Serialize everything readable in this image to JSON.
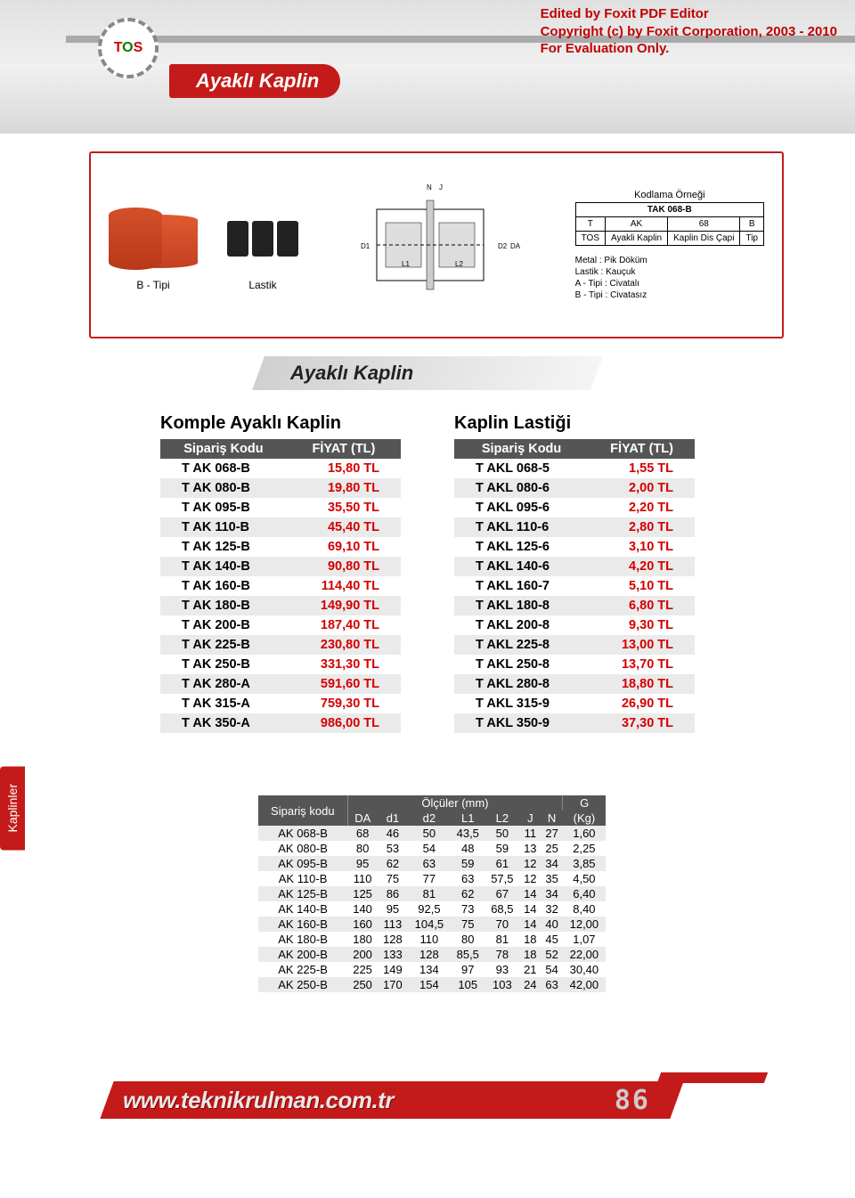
{
  "watermark": {
    "line1": "Edited by Foxit PDF Editor",
    "line2": "Copyright (c) by Foxit Corporation, 2003 - 2010",
    "line3": "For Evaluation Only."
  },
  "logo": {
    "t": "T",
    "o": "O",
    "s": "S"
  },
  "header_title": "Ayaklı Kaplin",
  "product_labels": {
    "btipi": "B - Tipi",
    "lastik": "Lastik"
  },
  "coding": {
    "title": "Kodlama Örneği",
    "example": "TAK 068-B",
    "row1": [
      "T",
      "AK",
      "68",
      "B"
    ],
    "row2": [
      "TOS",
      "Ayakli Kaplin",
      "Kaplin Dis Çapi",
      "Tip"
    ],
    "notes": [
      "Metal : Pik Döküm",
      "Lastik : Kauçuk",
      "A - Tipi : Civatalı",
      "B - Tipi : Civatasız"
    ]
  },
  "section_heading": "Ayaklı Kaplin",
  "table_left": {
    "title": "Komple Ayaklı Kaplin",
    "headers": [
      "Sipariş Kodu",
      "FİYAT  (TL)"
    ],
    "rows": [
      [
        "T AK 068-B",
        "15,80 TL"
      ],
      [
        "T AK 080-B",
        "19,80 TL"
      ],
      [
        "T AK 095-B",
        "35,50 TL"
      ],
      [
        "T AK 110-B",
        "45,40 TL"
      ],
      [
        "T AK 125-B",
        "69,10 TL"
      ],
      [
        "T AK 140-B",
        "90,80 TL"
      ],
      [
        "T AK 160-B",
        "114,40 TL"
      ],
      [
        "T AK 180-B",
        "149,90 TL"
      ],
      [
        "T AK 200-B",
        "187,40 TL"
      ],
      [
        "T AK 225-B",
        "230,80 TL"
      ],
      [
        "T AK 250-B",
        "331,30 TL"
      ],
      [
        "T AK 280-A",
        "591,60 TL"
      ],
      [
        "T AK 315-A",
        "759,30 TL"
      ],
      [
        "T AK 350-A",
        "986,00 TL"
      ]
    ]
  },
  "table_right": {
    "title": "Kaplin Lastiği",
    "headers": [
      "Sipariş Kodu",
      "FİYAT  (TL)"
    ],
    "rows": [
      [
        "T AKL 068-5",
        "1,55 TL"
      ],
      [
        "T AKL 080-6",
        "2,00 TL"
      ],
      [
        "T AKL 095-6",
        "2,20 TL"
      ],
      [
        "T AKL 110-6",
        "2,80 TL"
      ],
      [
        "T AKL 125-6",
        "3,10 TL"
      ],
      [
        "T AKL 140-6",
        "4,20 TL"
      ],
      [
        "T AKL 160-7",
        "5,10 TL"
      ],
      [
        "T AKL 180-8",
        "6,80 TL"
      ],
      [
        "T AKL 200-8",
        "9,30 TL"
      ],
      [
        "T AKL 225-8",
        "13,00 TL"
      ],
      [
        "T AKL 250-8",
        "13,70 TL"
      ],
      [
        "T AKL 280-8",
        "18,80 TL"
      ],
      [
        "T AKL 315-9",
        "26,90 TL"
      ],
      [
        "T AKL 350-9",
        "37,30 TL"
      ]
    ]
  },
  "side_tab": "Kaplinler",
  "dims": {
    "header_group1": "Sipariş kodu",
    "header_group2": "Ölçüler (mm)",
    "header_group3": "G",
    "subheads": [
      "DA",
      "d1",
      "d2",
      "L1",
      "L2",
      "J",
      "N",
      "(Kg)"
    ],
    "rows": [
      [
        "AK 068-B",
        "68",
        "46",
        "50",
        "43,5",
        "50",
        "11",
        "27",
        "1,60"
      ],
      [
        "AK 080-B",
        "80",
        "53",
        "54",
        "48",
        "59",
        "13",
        "25",
        "2,25"
      ],
      [
        "AK 095-B",
        "95",
        "62",
        "63",
        "59",
        "61",
        "12",
        "34",
        "3,85"
      ],
      [
        "AK 110-B",
        "110",
        "75",
        "77",
        "63",
        "57,5",
        "12",
        "35",
        "4,50"
      ],
      [
        "AK 125-B",
        "125",
        "86",
        "81",
        "62",
        "67",
        "14",
        "34",
        "6,40"
      ],
      [
        "AK 140-B",
        "140",
        "95",
        "92,5",
        "73",
        "68,5",
        "14",
        "32",
        "8,40"
      ],
      [
        "AK 160-B",
        "160",
        "113",
        "104,5",
        "75",
        "70",
        "14",
        "40",
        "12,00"
      ],
      [
        "AK 180-B",
        "180",
        "128",
        "110",
        "80",
        "81",
        "18",
        "45",
        "1,07"
      ],
      [
        "AK 200-B",
        "200",
        "133",
        "128",
        "85,5",
        "78",
        "18",
        "52",
        "22,00"
      ],
      [
        "AK 225-B",
        "225",
        "149",
        "134",
        "97",
        "93",
        "21",
        "54",
        "30,40"
      ],
      [
        "AK 250-B",
        "250",
        "170",
        "154",
        "105",
        "103",
        "24",
        "63",
        "42,00"
      ]
    ]
  },
  "footer": {
    "url": "www.teknikrulman.com.tr",
    "page": "86"
  },
  "colors": {
    "brand_red": "#c41a1a",
    "price_red": "#d40000",
    "header_dark": "#555555",
    "row_alt": "#eaeaea"
  }
}
